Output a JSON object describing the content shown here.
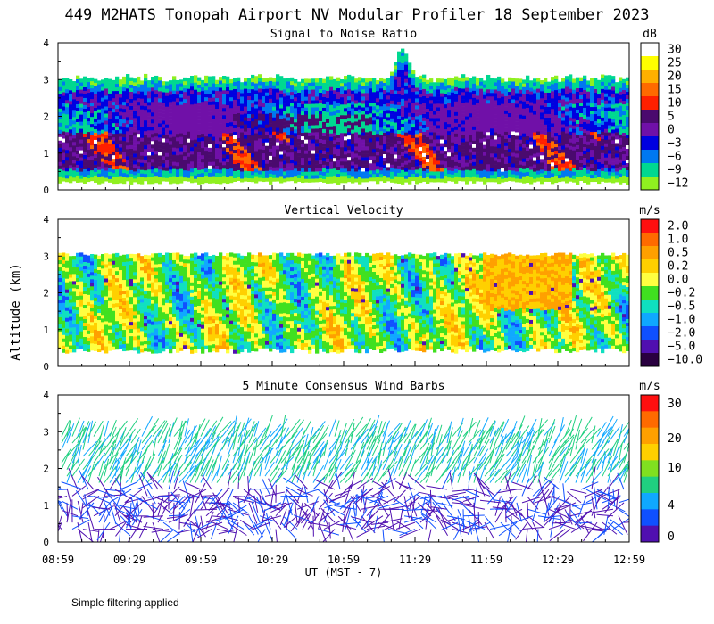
{
  "title": "449 M2HATS Tonopah Airport NV Modular Profiler 18 September 2023",
  "ylabel": "Altitude (km)",
  "xlabel": "UT  (MST - 7)",
  "footnote": "Simple filtering applied",
  "x_ticks": [
    "08:59",
    "09:29",
    "09:59",
    "10:29",
    "10:59",
    "11:29",
    "11:59",
    "12:29",
    "12:59"
  ],
  "y_ticks": [
    "0",
    "1",
    "2",
    "3",
    "4"
  ],
  "chart_data": [
    {
      "type": "heatmap",
      "title": "Signal to Noise Ratio",
      "units": "dB",
      "xlabel": "UT  (MST - 7)",
      "ylabel": "Altitude (km)",
      "x_range": [
        "08:59",
        "12:59"
      ],
      "ylim": [
        0,
        4
      ],
      "colorbar": {
        "labels": [
          "30",
          "25",
          "20",
          "15",
          "10",
          "5",
          "0",
          "−3",
          "−6",
          "−9",
          "−12"
        ],
        "colors": [
          "#ffffff",
          "#ffff00",
          "#ffb000",
          "#ff6a00",
          "#ff2000",
          "#4a0a6e",
          "#7010a8",
          "#0000e0",
          "#0078f0",
          "#00d890",
          "#90f020"
        ]
      },
      "data_top_km": 3.0,
      "data_bottom_km": 0.2,
      "peak": {
        "time": "11:15",
        "altitude_km": 3.8
      }
    },
    {
      "type": "heatmap",
      "title": "Vertical Velocity",
      "units": "m/s",
      "xlabel": "UT  (MST - 7)",
      "ylabel": "Altitude (km)",
      "x_range": [
        "08:59",
        "12:59"
      ],
      "ylim": [
        0,
        4
      ],
      "colorbar": {
        "labels": [
          "2.0",
          "1.0",
          "0.5",
          "0.2",
          "0.0",
          "−0.2",
          "−0.5",
          "−1.0",
          "−2.0",
          "−5.0",
          "−10.0"
        ],
        "colors": [
          "#ff1010",
          "#ff6a00",
          "#ffa000",
          "#ffd000",
          "#ffff40",
          "#40e020",
          "#10e0c0",
          "#10a8ff",
          "#1050ff",
          "#5010b0",
          "#2a0040"
        ]
      },
      "data_top_km": 3.0,
      "data_bottom_km": 0.35
    },
    {
      "type": "scatter",
      "title": "5 Minute Consensus Wind Barbs",
      "units": "m/s",
      "xlabel": "UT  (MST - 7)",
      "ylabel": "Altitude (km)",
      "x_range": [
        "08:59",
        "12:59"
      ],
      "ylim": [
        0,
        4
      ],
      "colorbar": {
        "labels": [
          "30",
          "20",
          "10",
          "4",
          "0"
        ],
        "colors": [
          "#ff1010",
          "#ff6a00",
          "#ffa000",
          "#ffd000",
          "#80e020",
          "#20d080",
          "#10a8ff",
          "#1050ff",
          "#5010b0"
        ]
      },
      "data_top_km": 3.0,
      "data_bottom_km": 0.35
    }
  ]
}
